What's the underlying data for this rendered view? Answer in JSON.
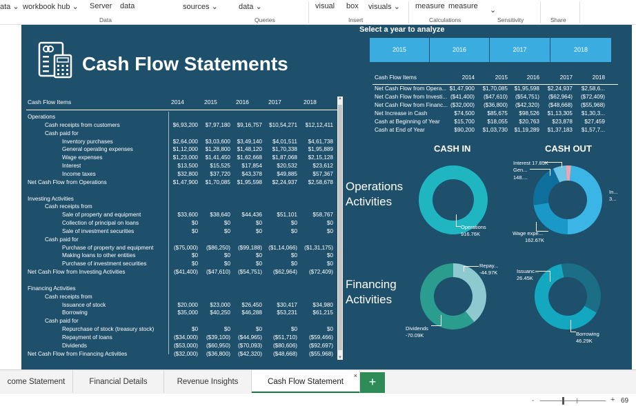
{
  "ribbon": {
    "items": [
      "ata",
      "workbook hub",
      "Server",
      "data",
      "sources",
      "data",
      "visual",
      "box",
      "visuals",
      "measure",
      "measure"
    ],
    "groups": [
      "Data",
      "Queries",
      "Insert",
      "Calculations",
      "Sensitivity",
      "Share"
    ]
  },
  "report": {
    "title": "Cash Flow Statements",
    "slicer_title": "Select a year to analyze",
    "years": [
      "2015",
      "2016",
      "2017",
      "2018"
    ],
    "detail": {
      "header": "Cash Flow Items",
      "year_cols": [
        "2014",
        "2015",
        "2016",
        "2017",
        "2018"
      ],
      "rows": [
        {
          "label": "Operations",
          "indent": 0,
          "vals": [
            "",
            "",
            "",
            "",
            ""
          ]
        },
        {
          "label": "Cash receipts from customers",
          "indent": 1,
          "vals": [
            "$6,93,200",
            "$7,97,180",
            "$9,16,757",
            "$10,54,271",
            "$12,12,411"
          ]
        },
        {
          "label": "Cash paid for",
          "indent": 1,
          "vals": [
            "",
            "",
            "",
            "",
            ""
          ]
        },
        {
          "label": "Inventory purchases",
          "indent": 2,
          "vals": [
            "$2,64,000",
            "$3,03,600",
            "$3,49,140",
            "$4,01,511",
            "$4,61,738"
          ]
        },
        {
          "label": "General operating expenses",
          "indent": 2,
          "vals": [
            "$1,12,000",
            "$1,28,800",
            "$1,48,120",
            "$1,70,338",
            "$1,95,889"
          ]
        },
        {
          "label": "Wage expenses",
          "indent": 2,
          "vals": [
            "$1,23,000",
            "$1,41,450",
            "$1,62,668",
            "$1,87,068",
            "$2,15,128"
          ]
        },
        {
          "label": "Interest",
          "indent": 2,
          "vals": [
            "$13,500",
            "$15,525",
            "$17,854",
            "$20,532",
            "$23,612"
          ]
        },
        {
          "label": "Income taxes",
          "indent": 2,
          "vals": [
            "$32,800",
            "$37,720",
            "$43,378",
            "$49,885",
            "$57,367"
          ]
        },
        {
          "label": "Net Cash Flow from Operations",
          "indent": 0,
          "vals": [
            "$1,47,900",
            "$1,70,085",
            "$1,95,598",
            "$2,24,937",
            "$2,58,678"
          ]
        },
        {
          "label": "",
          "indent": 0,
          "vals": [
            "",
            "",
            "",
            "",
            ""
          ]
        },
        {
          "label": "Investing Activities",
          "indent": 0,
          "vals": [
            "",
            "",
            "",
            "",
            ""
          ]
        },
        {
          "label": "Cash receipts from",
          "indent": 1,
          "vals": [
            "",
            "",
            "",
            "",
            ""
          ]
        },
        {
          "label": "Sale of property and equipment",
          "indent": 2,
          "vals": [
            "$33,600",
            "$38,640",
            "$44,436",
            "$51,101",
            "$58,767"
          ]
        },
        {
          "label": "Collection of principal on loans",
          "indent": 2,
          "vals": [
            "$0",
            "$0",
            "$0",
            "$0",
            "$0"
          ]
        },
        {
          "label": "Sale of investment securities",
          "indent": 2,
          "vals": [
            "$0",
            "$0",
            "$0",
            "$0",
            "$0"
          ]
        },
        {
          "label": "Cash paid for",
          "indent": 1,
          "vals": [
            "",
            "",
            "",
            "",
            ""
          ]
        },
        {
          "label": "Purchase of property and equipment",
          "indent": 2,
          "vals": [
            "($75,000)",
            "($86,250)",
            "($99,188)",
            "($1,14,066)",
            "($1,31,175)"
          ]
        },
        {
          "label": "Making loans to other entities",
          "indent": 2,
          "vals": [
            "$0",
            "$0",
            "$0",
            "$0",
            "$0"
          ]
        },
        {
          "label": "Purchase of investment securities",
          "indent": 2,
          "vals": [
            "$0",
            "$0",
            "$0",
            "$0",
            "$0"
          ]
        },
        {
          "label": "Net Cash Flow from Investing Activities",
          "indent": 0,
          "vals": [
            "($41,400)",
            "($47,610)",
            "($54,751)",
            "($62,964)",
            "($72,409)"
          ]
        },
        {
          "label": "",
          "indent": 0,
          "vals": [
            "",
            "",
            "",
            "",
            ""
          ]
        },
        {
          "label": "Financing Activities",
          "indent": 0,
          "vals": [
            "",
            "",
            "",
            "",
            ""
          ]
        },
        {
          "label": "Cash receipts from",
          "indent": 1,
          "vals": [
            "",
            "",
            "",
            "",
            ""
          ]
        },
        {
          "label": "Issuance of stock",
          "indent": 2,
          "vals": [
            "$20,000",
            "$23,000",
            "$26,450",
            "$30,417",
            "$34,980"
          ]
        },
        {
          "label": "Borrowing",
          "indent": 2,
          "vals": [
            "$35,000",
            "$40,250",
            "$46,288",
            "$53,231",
            "$61,215"
          ]
        },
        {
          "label": "Cash paid for",
          "indent": 1,
          "vals": [
            "",
            "",
            "",
            "",
            ""
          ]
        },
        {
          "label": "Repurchase of stock (treasury stock)",
          "indent": 2,
          "vals": [
            "$0",
            "$0",
            "$0",
            "$0",
            "$0"
          ]
        },
        {
          "label": "Repayment of loans",
          "indent": 2,
          "vals": [
            "($34,000)",
            "($39,100)",
            "($44,965)",
            "($51,710)",
            "($59,466)"
          ]
        },
        {
          "label": "Dividends",
          "indent": 2,
          "vals": [
            "($53,000)",
            "($60,950)",
            "($70,093)",
            "($80,606)",
            "($92,697)"
          ]
        },
        {
          "label": "Net Cash Flow from Financing Activities",
          "indent": 0,
          "vals": [
            "($32,000)",
            "($36,800)",
            "($42,320)",
            "($48,668)",
            "($55,968)"
          ]
        }
      ]
    },
    "summary": {
      "header": "Cash Flow Items",
      "year_cols": [
        "2014",
        "2015",
        "2016",
        "2017",
        "2018"
      ],
      "rows": [
        {
          "label": "Net Cash Flow from Opera...",
          "vals": [
            "$1,47,900",
            "$1,70,085",
            "$1,95,598",
            "$2,24,937",
            "$2,58,6..."
          ]
        },
        {
          "label": "Net Cash Flow from Investi...",
          "vals": [
            "($41,400)",
            "($47,610)",
            "($54,751)",
            "($62,964)",
            "($72,409)"
          ]
        },
        {
          "label": "Net Cash Flow from Financ...",
          "vals": [
            "($32,000)",
            "($36,800)",
            "($42,320)",
            "($48,668)",
            "($55,968)"
          ]
        },
        {
          "label": "Net Increase in Cash",
          "vals": [
            "$74,500",
            "$85,675",
            "$98,526",
            "$1,13,305",
            "$1,30,3..."
          ]
        },
        {
          "label": "Cash at Beginning of Year",
          "vals": [
            "$15,700",
            "$18,055",
            "$20,763",
            "$23,878",
            "$27,459"
          ]
        },
        {
          "label": "Cash at End of Year",
          "vals": [
            "$90,200",
            "$1,03,730",
            "$1,19,289",
            "$1,37,183",
            "$1,57,7..."
          ]
        }
      ]
    },
    "cash_in_title": "CASH IN",
    "cash_out_title": "CASH OUT",
    "operations_title": "Operations Activities",
    "financing_title": "Financing Activities",
    "charts": {
      "ops_in": {
        "label": "Operations",
        "value": "916.76K",
        "color": "#1fb6c1"
      },
      "ops_out": {
        "labels": [
          {
            "text": "Interest 17.85K"
          },
          {
            "text": "Gen..."
          },
          {
            "text": "148...."
          },
          {
            "text": "In..."
          },
          {
            "text": "3..."
          },
          {
            "text": "Wage expe..."
          },
          {
            "text": "162.67K"
          }
        ],
        "slices": [
          {
            "name": "Inventory purchases",
            "value": 349.14,
            "color": "#3ab5e6"
          },
          {
            "name": "Wage expenses",
            "value": 162.67,
            "color": "#1a98c8"
          },
          {
            "name": "General operating expenses",
            "value": 148.12,
            "color": "#0f6f9c"
          },
          {
            "name": "Income taxes",
            "value": 43.38,
            "color": "#6cc6e8"
          },
          {
            "name": "Interest",
            "value": 17.85,
            "color": "#e8a7b3"
          }
        ]
      },
      "fin_in": {
        "slices": [
          {
            "name": "Repayment",
            "value": 44.97,
            "color": "#8ec9cf"
          },
          {
            "name": "Dividends",
            "value": 70.09,
            "color": "#2a9d8f"
          }
        ],
        "label_a": "Repay...",
        "value_a": "-44.97K",
        "label_b": "Dividends",
        "value_b": "-70.09K"
      },
      "fin_out": {
        "slices": [
          {
            "name": "Issuance",
            "value": 26.45,
            "color": "#1c6e86"
          },
          {
            "name": "Borrowing",
            "value": 46.29,
            "color": "#14a8c0"
          }
        ],
        "label_a": "Issuanc...",
        "value_a": "26.45K",
        "label_b": "Borrowing",
        "value_b": "46.29K"
      }
    }
  },
  "sheet_tabs": [
    "come Statement",
    "Financial Details",
    "Revenue Insights",
    "Cash Flow Statement"
  ],
  "active_tab": "Cash Flow Statement",
  "add_tab": "+",
  "tab_close": "×",
  "zoom": "69"
}
